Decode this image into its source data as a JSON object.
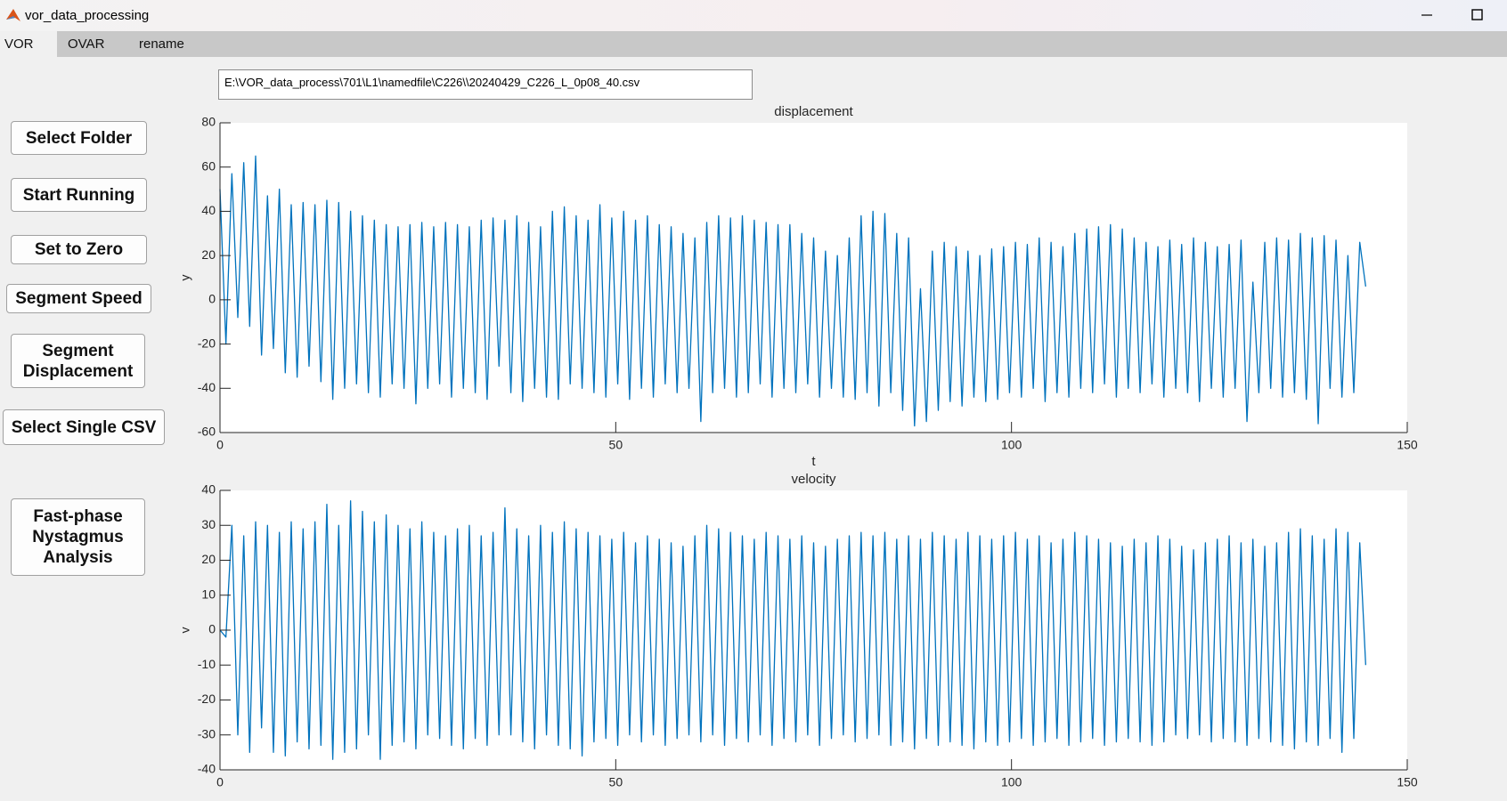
{
  "window": {
    "title": "vor_data_processing"
  },
  "tabs": [
    "VOR",
    "OVAR",
    "rename"
  ],
  "file_path": "E:\\VOR_data_process\\701\\L1\\namedfile\\C226\\\\20240429_C226_L_0p08_40.csv",
  "buttons": [
    "Select Folder",
    "Start Running",
    "Set to Zero",
    "Segment Speed",
    "Segment Displacement",
    "Select Single CSV",
    "Fast-phase Nystagmus Analysis"
  ],
  "chart_data": [
    {
      "type": "line",
      "title": "displacement",
      "xlabel": "t",
      "ylabel": "y",
      "xlim": [
        0,
        150
      ],
      "xticks": [
        0,
        50,
        100,
        150
      ],
      "ylim": [
        -60,
        80
      ],
      "yticks": [
        -60,
        -40,
        -20,
        0,
        20,
        40,
        60,
        80
      ],
      "x": [
        0,
        0.75,
        1.5,
        2.25,
        3,
        3.75,
        4.5,
        5.25,
        6,
        6.75,
        7.5,
        8.25,
        9,
        9.75,
        10.5,
        11.25,
        12,
        12.75,
        13.5,
        14.25,
        15,
        15.75,
        16.5,
        17.25,
        18,
        18.75,
        19.5,
        20.25,
        21,
        21.75,
        22.5,
        23.25,
        24,
        24.75,
        25.5,
        26.25,
        27,
        27.75,
        28.5,
        29.25,
        30,
        30.75,
        31.5,
        32.25,
        33,
        33.75,
        34.5,
        35.25,
        36,
        36.75,
        37.5,
        38.25,
        39,
        39.75,
        40.5,
        41.25,
        42,
        42.75,
        43.5,
        44.25,
        45,
        45.75,
        46.5,
        47.25,
        48,
        48.75,
        49.5,
        50.25,
        51,
        51.75,
        52.5,
        53.25,
        54,
        54.75,
        55.5,
        56.25,
        57,
        57.75,
        58.5,
        59.25,
        60,
        60.75,
        61.5,
        62.25,
        63,
        63.75,
        64.5,
        65.25,
        66,
        66.75,
        67.5,
        68.25,
        69,
        69.75,
        70.5,
        71.25,
        72,
        72.75,
        73.5,
        74.25,
        75,
        75.75,
        76.5,
        77.25,
        78,
        78.75,
        79.5,
        80.25,
        81,
        81.75,
        82.5,
        83.25,
        84,
        84.75,
        85.5,
        86.25,
        87,
        87.75,
        88.5,
        89.25,
        90,
        90.75,
        91.5,
        92.25,
        93,
        93.75,
        94.5,
        95.25,
        96,
        96.75,
        97.5,
        98.25,
        99,
        99.75,
        100.5,
        101.25,
        102,
        102.75,
        103.5,
        104.25,
        105,
        105.75,
        106.5,
        107.25,
        108,
        108.75,
        109.5,
        110.25,
        111,
        111.75,
        112.5,
        113.25,
        114,
        114.75,
        115.5,
        116.25,
        117,
        117.75,
        118.5,
        119.25,
        120,
        120.75,
        121.5,
        122.25,
        123,
        123.75,
        124.5,
        125.25,
        126,
        126.75,
        127.5,
        128.25,
        129,
        129.75,
        130.5,
        131.25,
        132,
        132.75,
        133.5,
        134.25,
        135,
        135.75,
        136.5,
        137.25,
        138,
        138.75,
        139.5,
        140.25,
        141,
        141.75,
        142.5,
        143.25,
        144,
        144.75
      ],
      "series": [
        {
          "color": "#0072bd",
          "values": [
            50,
            -20,
            57,
            -8,
            62,
            -12,
            65,
            -25,
            47,
            -22,
            50,
            -33,
            43,
            -35,
            44,
            -30,
            43,
            -37,
            45,
            -45,
            44,
            -40,
            40,
            -38,
            38,
            -42,
            36,
            -44,
            34,
            -38,
            33,
            -40,
            34,
            -47,
            35,
            -40,
            33,
            -38,
            35,
            -44,
            34,
            -40,
            33,
            -42,
            36,
            -45,
            37,
            -30,
            36,
            -42,
            38,
            -46,
            35,
            -40,
            33,
            -44,
            40,
            -45,
            42,
            -38,
            38,
            -40,
            36,
            -42,
            43,
            -44,
            37,
            -38,
            40,
            -45,
            36,
            -40,
            38,
            -44,
            34,
            -38,
            33,
            -42,
            30,
            -40,
            28,
            -55,
            35,
            -42,
            38,
            -40,
            37,
            -44,
            38,
            -42,
            36,
            -38,
            35,
            -44,
            34,
            -40,
            34,
            -42,
            30,
            -38,
            28,
            -44,
            22,
            -40,
            20,
            -44,
            28,
            -45,
            38,
            -42,
            40,
            -48,
            39,
            -42,
            30,
            -50,
            28,
            -57,
            5,
            -55,
            22,
            -50,
            26,
            -46,
            24,
            -48,
            22,
            -44,
            20,
            -46,
            23,
            -45,
            24,
            -42,
            26,
            -44,
            25,
            -40,
            28,
            -46,
            26,
            -42,
            24,
            -44,
            30,
            -40,
            32,
            -42,
            33,
            -38,
            34,
            -44,
            32,
            -40,
            28,
            -42,
            26,
            -38,
            24,
            -44,
            27,
            -40,
            25,
            -42,
            28,
            -46,
            26,
            -40,
            24,
            -44,
            25,
            -40,
            27,
            -55,
            8,
            -42,
            26,
            -40,
            28,
            -44,
            27,
            -42,
            30,
            -45,
            28,
            -56,
            29,
            -40,
            27,
            -44,
            20,
            -42,
            26,
            6
          ]
        }
      ]
    },
    {
      "type": "line",
      "title": "velocity",
      "ylabel": "v",
      "xlim": [
        0,
        150
      ],
      "xticks": [
        0,
        50,
        100,
        150
      ],
      "ylim": [
        -40,
        40
      ],
      "yticks": [
        -40,
        -30,
        -20,
        -10,
        0,
        10,
        20,
        30,
        40
      ],
      "x": [
        0,
        0.75,
        1.5,
        2.25,
        3,
        3.75,
        4.5,
        5.25,
        6,
        6.75,
        7.5,
        8.25,
        9,
        9.75,
        10.5,
        11.25,
        12,
        12.75,
        13.5,
        14.25,
        15,
        15.75,
        16.5,
        17.25,
        18,
        18.75,
        19.5,
        20.25,
        21,
        21.75,
        22.5,
        23.25,
        24,
        24.75,
        25.5,
        26.25,
        27,
        27.75,
        28.5,
        29.25,
        30,
        30.75,
        31.5,
        32.25,
        33,
        33.75,
        34.5,
        35.25,
        36,
        36.75,
        37.5,
        38.25,
        39,
        39.75,
        40.5,
        41.25,
        42,
        42.75,
        43.5,
        44.25,
        45,
        45.75,
        46.5,
        47.25,
        48,
        48.75,
        49.5,
        50.25,
        51,
        51.75,
        52.5,
        53.25,
        54,
        54.75,
        55.5,
        56.25,
        57,
        57.75,
        58.5,
        59.25,
        60,
        60.75,
        61.5,
        62.25,
        63,
        63.75,
        64.5,
        65.25,
        66,
        66.75,
        67.5,
        68.25,
        69,
        69.75,
        70.5,
        71.25,
        72,
        72.75,
        73.5,
        74.25,
        75,
        75.75,
        76.5,
        77.25,
        78,
        78.75,
        79.5,
        80.25,
        81,
        81.75,
        82.5,
        83.25,
        84,
        84.75,
        85.5,
        86.25,
        87,
        87.75,
        88.5,
        89.25,
        90,
        90.75,
        91.5,
        92.25,
        93,
        93.75,
        94.5,
        95.25,
        96,
        96.75,
        97.5,
        98.25,
        99,
        99.75,
        100.5,
        101.25,
        102,
        102.75,
        103.5,
        104.25,
        105,
        105.75,
        106.5,
        107.25,
        108,
        108.75,
        109.5,
        110.25,
        111,
        111.75,
        112.5,
        113.25,
        114,
        114.75,
        115.5,
        116.25,
        117,
        117.75,
        118.5,
        119.25,
        120,
        120.75,
        121.5,
        122.25,
        123,
        123.75,
        124.5,
        125.25,
        126,
        126.75,
        127.5,
        128.25,
        129,
        129.75,
        130.5,
        131.25,
        132,
        132.75,
        133.5,
        134.25,
        135,
        135.75,
        136.5,
        137.25,
        138,
        138.75,
        139.5,
        140.25,
        141,
        141.75,
        142.5,
        143.25,
        144,
        144.75
      ],
      "series": [
        {
          "color": "#0072bd",
          "values": [
            0,
            -2,
            30,
            -30,
            27,
            -35,
            31,
            -28,
            30,
            -35,
            28,
            -36,
            31,
            -32,
            29,
            -34,
            31,
            -33,
            36,
            -37,
            30,
            -35,
            37,
            -34,
            34,
            -30,
            31,
            -37,
            33,
            -33,
            30,
            -32,
            29,
            -34,
            31,
            -30,
            28,
            -31,
            27,
            -33,
            29,
            -34,
            30,
            -31,
            27,
            -33,
            28,
            -30,
            35,
            -30,
            29,
            -32,
            27,
            -34,
            30,
            -30,
            28,
            -33,
            31,
            -34,
            29,
            -36,
            28,
            -32,
            27,
            -31,
            26,
            -33,
            28,
            -30,
            25,
            -32,
            27,
            -30,
            26,
            -33,
            25,
            -31,
            24,
            -30,
            27,
            -32,
            30,
            -30,
            29,
            -33,
            28,
            -31,
            27,
            -32,
            26,
            -30,
            28,
            -33,
            27,
            -31,
            26,
            -32,
            27,
            -30,
            25,
            -33,
            24,
            -31,
            26,
            -30,
            27,
            -32,
            28,
            -31,
            27,
            -30,
            28,
            -33,
            26,
            -32,
            27,
            -34,
            26,
            -31,
            28,
            -33,
            27,
            -32,
            26,
            -33,
            28,
            -34,
            27,
            -32,
            26,
            -33,
            27,
            -32,
            28,
            -31,
            26,
            -33,
            27,
            -32,
            25,
            -31,
            26,
            -33,
            28,
            -32,
            27,
            -31,
            26,
            -33,
            25,
            -32,
            24,
            -31,
            26,
            -32,
            25,
            -33,
            27,
            -32,
            26,
            -30,
            24,
            -31,
            23,
            -30,
            25,
            -32,
            26,
            -31,
            27,
            -32,
            25,
            -33,
            26,
            -31,
            24,
            -32,
            25,
            -33,
            28,
            -34,
            29,
            -32,
            27,
            -33,
            26,
            -31,
            29,
            -35,
            28,
            -31,
            25,
            -10
          ]
        }
      ]
    }
  ]
}
